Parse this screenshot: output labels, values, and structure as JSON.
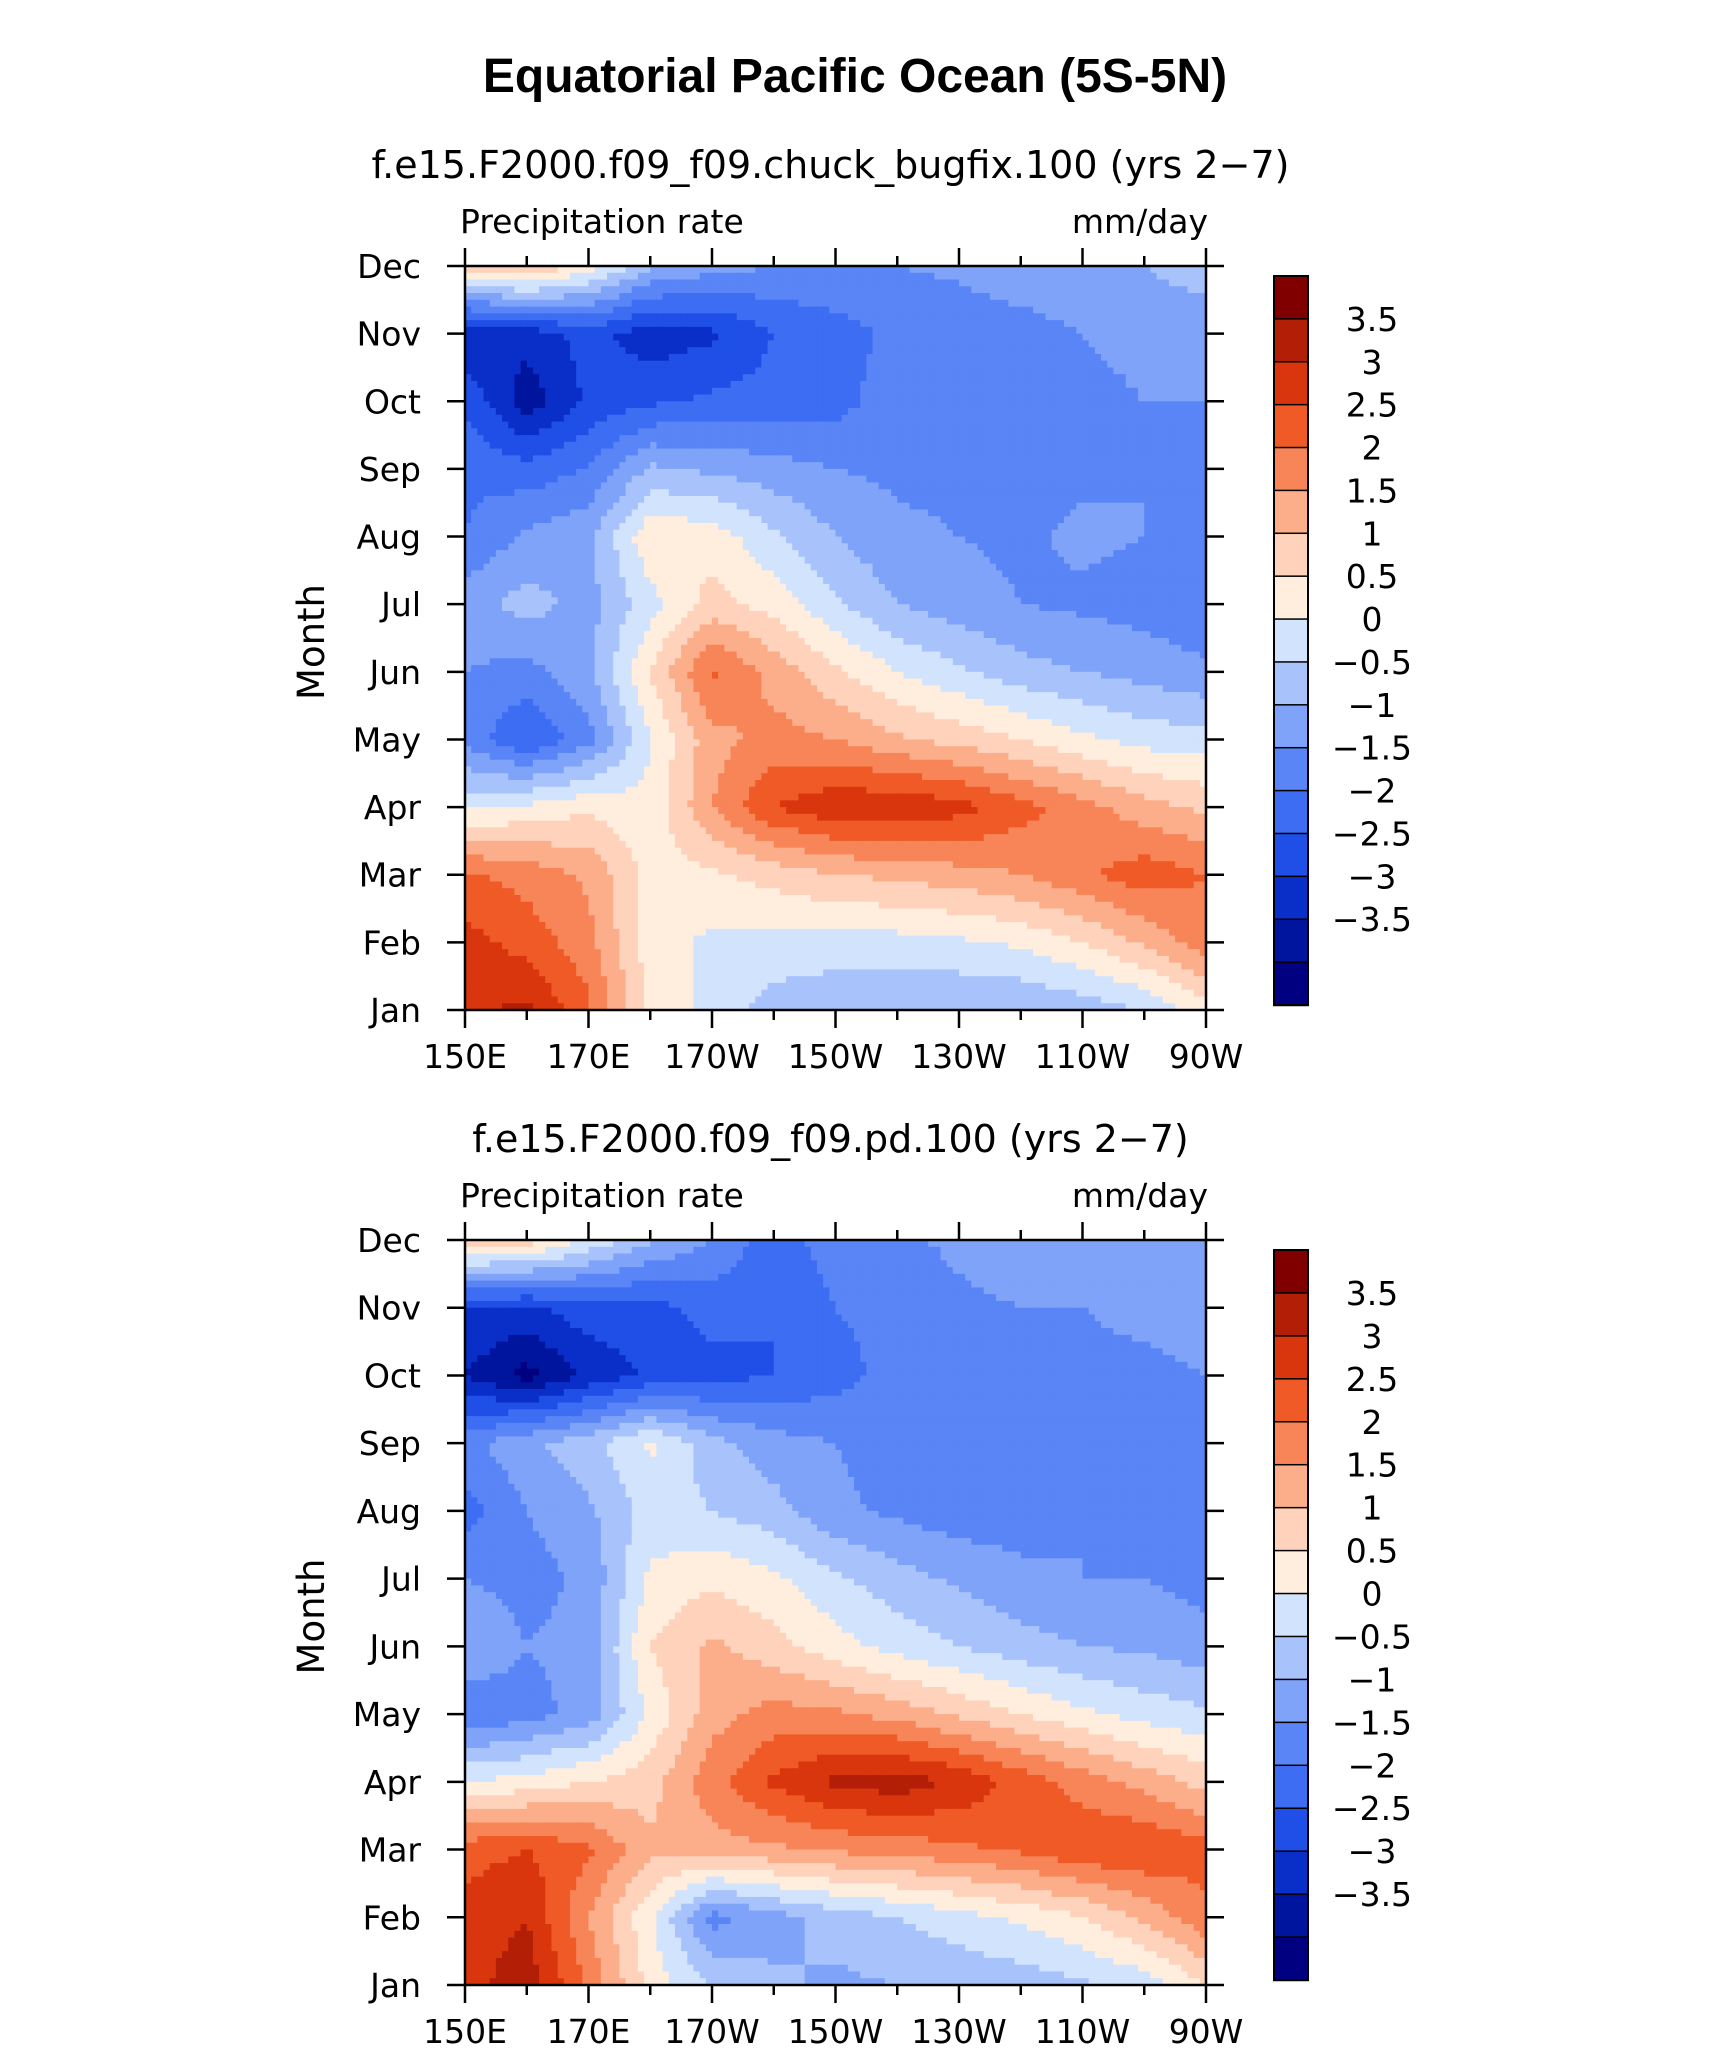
{
  "main_title": "Equatorial Pacific Ocean (5S-5N)",
  "colors": {
    "levels_palette": [
      "#000080",
      "#00159e",
      "#0a2fc8",
      "#1f4fe6",
      "#3d6df2",
      "#5a85f6",
      "#7fa3f9",
      "#a8c3fb",
      "#d1e3fd",
      "#ffeede",
      "#ffd2bb",
      "#fcae8a",
      "#f78558",
      "#ef5a26",
      "#d9360e",
      "#b21f06",
      "#800000"
    ],
    "axis": "#000000"
  },
  "colorbar": {
    "levels": [
      -3.5,
      -3,
      -2.5,
      -2,
      -1.5,
      -1,
      -0.5,
      0,
      0.5,
      1,
      1.5,
      2,
      2.5,
      3,
      3.5
    ],
    "labels": [
      "3.5",
      "3",
      "2.5",
      "2",
      "1.5",
      "1",
      "0.5",
      "0",
      "−0.5",
      "−1",
      "−1.5",
      "−2",
      "−2.5",
      "−3",
      "−3.5"
    ]
  },
  "chart_data": [
    {
      "type": "heatmap",
      "title": "f.e15.F2000.f09_f09.chuck_bugfix.100 (yrs 2−7)",
      "left_string": "Precipitation rate",
      "right_string": "mm/day",
      "ylabel": "Month",
      "xlabel": "",
      "x_ticks": [
        "150E",
        "170E",
        "170W",
        "150W",
        "130W",
        "110W",
        "90W"
      ],
      "x_values": [
        150,
        170,
        190,
        210,
        230,
        250,
        270
      ],
      "xlim": [
        150,
        270
      ],
      "y_ticks": [
        "Jan",
        "Feb",
        "Mar",
        "Apr",
        "May",
        "Jun",
        "Jul",
        "Aug",
        "Sep",
        "Oct",
        "Nov",
        "Dec"
      ],
      "ylim": [
        1,
        12
      ],
      "grid_lon": [
        150,
        160,
        170,
        180,
        190,
        200,
        210,
        220,
        230,
        240,
        250,
        260,
        270
      ],
      "grid_month": [
        1,
        2,
        3,
        4,
        5,
        6,
        7,
        8,
        9,
        10,
        11,
        12
      ],
      "z": [
        [
          3.4,
          3.6,
          2.6,
          0.9,
          0.3,
          -0.2,
          -0.4,
          -0.5,
          -0.5,
          -0.5,
          -0.3,
          0.0,
          0.8
        ],
        [
          3.2,
          2.8,
          2.2,
          0.7,
          0.4,
          0.3,
          0.3,
          0.3,
          0.4,
          0.6,
          1.0,
          1.6,
          2.3
        ],
        [
          2.6,
          2.3,
          1.9,
          0.8,
          0.9,
          1.2,
          1.5,
          1.6,
          1.8,
          2.0,
          2.4,
          2.8,
          2.5
        ],
        [
          0.4,
          0.6,
          0.9,
          0.6,
          2.0,
          3.0,
          3.4,
          3.4,
          3.2,
          2.7,
          2.2,
          1.7,
          1.4
        ],
        [
          -1.2,
          -2.0,
          -1.2,
          0.5,
          1.8,
          2.2,
          2.0,
          1.6,
          1.3,
          1.0,
          0.6,
          0.3,
          0.2
        ],
        [
          -1.0,
          -1.2,
          -0.6,
          1.0,
          2.6,
          1.8,
          1.1,
          0.5,
          0.1,
          -0.3,
          -0.5,
          -0.7,
          -0.9
        ],
        [
          -0.7,
          -0.3,
          -0.7,
          0.3,
          1.2,
          0.8,
          0.1,
          -0.5,
          -0.8,
          -1.0,
          -1.1,
          -1.2,
          -1.4
        ],
        [
          -1.5,
          -0.9,
          -0.6,
          0.9,
          0.8,
          0.1,
          -0.5,
          -0.9,
          -1.0,
          -1.1,
          -0.9,
          -1.0,
          -1.2
        ],
        [
          -1.6,
          -1.8,
          -1.5,
          -0.4,
          -0.6,
          -0.8,
          -1.0,
          -1.1,
          -1.1,
          -1.2,
          -1.1,
          -1.0,
          -1.1
        ],
        [
          -2.1,
          -3.3,
          -2.4,
          -2.1,
          -1.9,
          -1.8,
          -1.7,
          -1.2,
          -1.1,
          -1.2,
          -1.1,
          -1.0,
          -1.0
        ],
        [
          -3.0,
          -2.8,
          -2.3,
          -2.8,
          -2.6,
          -2.0,
          -1.7,
          -1.4,
          -1.3,
          -1.2,
          -1.0,
          -0.9,
          -0.9
        ],
        [
          1.2,
          1.6,
          0.8,
          -0.4,
          -0.8,
          -1.0,
          -1.1,
          -1.0,
          -0.9,
          -0.7,
          -0.6,
          -0.5,
          -0.2
        ]
      ]
    },
    {
      "type": "heatmap",
      "title": "f.e15.F2000.f09_f09.pd.100 (yrs 2−7)",
      "left_string": "Precipitation rate",
      "right_string": "mm/day",
      "ylabel": "Month",
      "xlabel": "",
      "x_ticks": [
        "150E",
        "170E",
        "170W",
        "150W",
        "130W",
        "110W",
        "90W"
      ],
      "x_values": [
        150,
        170,
        190,
        210,
        230,
        250,
        270
      ],
      "xlim": [
        150,
        270
      ],
      "y_ticks": [
        "Jan",
        "Feb",
        "Mar",
        "Apr",
        "May",
        "Jun",
        "Jul",
        "Aug",
        "Sep",
        "Oct",
        "Nov",
        "Dec"
      ],
      "ylim": [
        1,
        12
      ],
      "grid_lon": [
        150,
        160,
        170,
        180,
        190,
        200,
        210,
        220,
        230,
        240,
        250,
        260,
        270
      ],
      "grid_month": [
        1,
        2,
        3,
        4,
        5,
        6,
        7,
        8,
        9,
        10,
        11,
        12
      ],
      "z": [
        [
          3.3,
          3.8,
          2.4,
          0.8,
          0.0,
          -0.4,
          -0.6,
          -0.5,
          -0.4,
          -0.3,
          -0.1,
          0.2,
          1.0
        ],
        [
          3.2,
          3.5,
          2.0,
          0.6,
          -1.2,
          -0.7,
          -0.3,
          0.0,
          0.3,
          0.6,
          1.0,
          1.6,
          2.4
        ],
        [
          2.8,
          3.0,
          2.6,
          1.6,
          1.8,
          1.9,
          2.1,
          2.2,
          2.4,
          2.6,
          2.9,
          3.0,
          2.7
        ],
        [
          0.5,
          0.7,
          1.0,
          1.3,
          2.3,
          3.1,
          3.6,
          3.8,
          3.4,
          2.8,
          2.3,
          1.8,
          1.3
        ],
        [
          -1.5,
          -1.2,
          -0.8,
          0.6,
          1.8,
          2.2,
          2.1,
          1.8,
          1.4,
          1.0,
          0.6,
          0.3,
          0.1
        ],
        [
          -0.5,
          -1.0,
          -0.8,
          1.0,
          1.6,
          1.2,
          0.7,
          0.3,
          0.0,
          -0.3,
          -0.5,
          -0.6,
          -0.8
        ],
        [
          -1.0,
          -1.2,
          -0.9,
          0.6,
          0.9,
          0.6,
          0.1,
          -0.3,
          -0.6,
          -0.9,
          -1.0,
          -1.0,
          -1.2
        ],
        [
          -1.7,
          -1.0,
          -0.6,
          0.2,
          0.0,
          -0.3,
          -0.9,
          -1.1,
          -1.3,
          -1.2,
          -1.0,
          -1.1,
          -1.3
        ],
        [
          -1.2,
          -0.6,
          -0.2,
          0.6,
          -0.3,
          -0.8,
          -1.0,
          -1.2,
          -1.2,
          -1.0,
          -1.0,
          -1.1,
          -1.1
        ],
        [
          -3.0,
          -3.7,
          -2.9,
          -2.4,
          -2.2,
          -2.0,
          -1.7,
          -1.3,
          -1.2,
          -1.2,
          -1.1,
          -1.1,
          -1.0
        ],
        [
          -2.5,
          -2.6,
          -2.2,
          -2.2,
          -1.8,
          -2.0,
          -1.5,
          -1.3,
          -1.1,
          -1.0,
          -1.0,
          -0.9,
          -0.8
        ],
        [
          1.4,
          1.3,
          0.4,
          -0.4,
          -1.0,
          -1.8,
          -1.2,
          -1.1,
          -0.9,
          -0.7,
          -0.7,
          -0.6,
          -0.7
        ]
      ]
    }
  ]
}
